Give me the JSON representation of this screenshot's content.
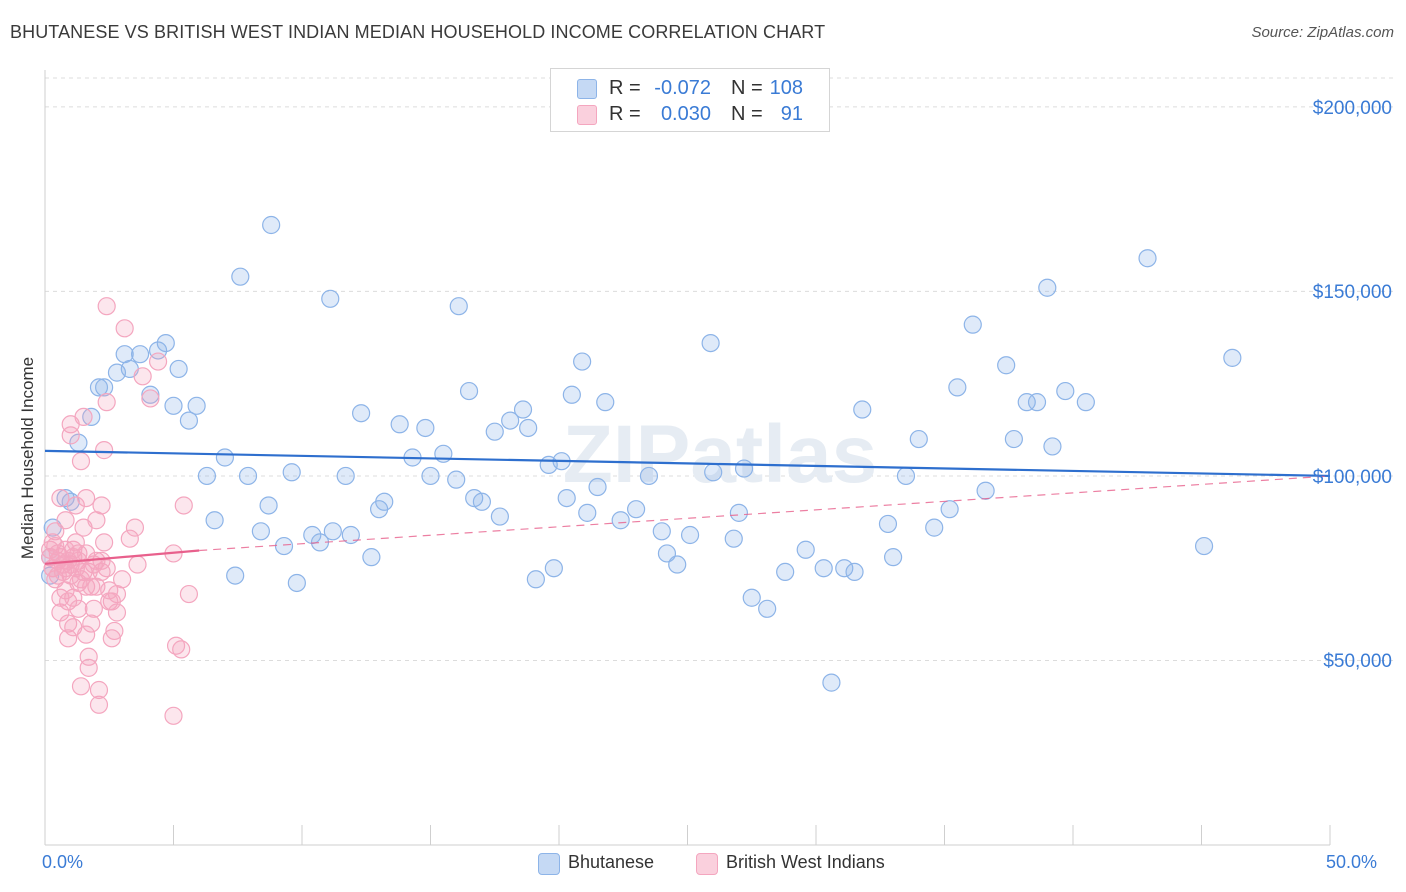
{
  "header": {
    "title": "BHUTANESE VS BRITISH WEST INDIAN MEDIAN HOUSEHOLD INCOME CORRELATION CHART",
    "source": "Source: ZipAtlas.com"
  },
  "legend_top": {
    "rows": [
      {
        "r_label": "R =",
        "r_value": "-0.072",
        "n_label": "N =",
        "n_value": "108",
        "color": "#8db4e8"
      },
      {
        "r_label": "R =",
        "r_value": "0.030",
        "n_label": "N =",
        "n_value": "91",
        "color": "#f4a6bf"
      }
    ]
  },
  "legend_bottom": {
    "items": [
      {
        "label": "Bhutanese",
        "color": "#8db4e8"
      },
      {
        "label": "British West Indians",
        "color": "#f4a6bf"
      }
    ]
  },
  "chart_data": {
    "type": "scatter",
    "title": "BHUTANESE VS BRITISH WEST INDIAN MEDIAN HOUSEHOLD INCOME CORRELATION CHART",
    "ylabel": "Median Household Income",
    "xlabel": "",
    "xlim": [
      0,
      50
    ],
    "ylim": [
      0,
      210000
    ],
    "x_tick_labels": [
      {
        "value": 0,
        "label": "0.0%"
      },
      {
        "value": 50,
        "label": "50.0%"
      }
    ],
    "y_tick_labels": [
      {
        "value": 50000,
        "label": "$50,000"
      },
      {
        "value": 100000,
        "label": "$100,000"
      },
      {
        "value": 150000,
        "label": "$150,000"
      },
      {
        "value": 200000,
        "label": "$200,000"
      }
    ],
    "grid": true,
    "legend": "bottom",
    "watermark": "ZIPatlas",
    "series": [
      {
        "name": "Bhutanese",
        "color": "#8db4e8",
        "trend": {
          "x": [
            0,
            50
          ],
          "y": [
            106800,
            100000
          ],
          "color": "#2e6fce",
          "style": "solid"
        },
        "points": [
          [
            0.2,
            78000
          ],
          [
            0.2,
            73000
          ],
          [
            0.3,
            86000
          ],
          [
            0.8,
            94000
          ],
          [
            1.0,
            93000
          ],
          [
            1.3,
            109000
          ],
          [
            1.8,
            116000
          ],
          [
            2.1,
            124000
          ],
          [
            2.3,
            124000
          ],
          [
            2.8,
            128000
          ],
          [
            3.1,
            133000
          ],
          [
            3.3,
            129000
          ],
          [
            3.7,
            133000
          ],
          [
            4.1,
            122000
          ],
          [
            4.4,
            134000
          ],
          [
            4.7,
            136000
          ],
          [
            5.0,
            119000
          ],
          [
            5.2,
            129000
          ],
          [
            5.6,
            115000
          ],
          [
            5.9,
            119000
          ],
          [
            6.3,
            100000
          ],
          [
            6.6,
            88000
          ],
          [
            7.0,
            105000
          ],
          [
            7.4,
            73000
          ],
          [
            7.6,
            154000
          ],
          [
            7.9,
            100000
          ],
          [
            8.4,
            85000
          ],
          [
            8.7,
            92000
          ],
          [
            8.8,
            168000
          ],
          [
            9.3,
            81000
          ],
          [
            9.6,
            101000
          ],
          [
            9.8,
            71000
          ],
          [
            10.4,
            84000
          ],
          [
            10.7,
            82000
          ],
          [
            11.1,
            148000
          ],
          [
            11.2,
            85000
          ],
          [
            11.7,
            100000
          ],
          [
            11.9,
            84000
          ],
          [
            12.3,
            117000
          ],
          [
            12.7,
            78000
          ],
          [
            13.0,
            91000
          ],
          [
            13.2,
            93000
          ],
          [
            13.8,
            114000
          ],
          [
            14.3,
            105000
          ],
          [
            14.8,
            113000
          ],
          [
            15.0,
            100000
          ],
          [
            15.5,
            106000
          ],
          [
            16.0,
            99000
          ],
          [
            16.1,
            146000
          ],
          [
            16.5,
            123000
          ],
          [
            16.7,
            94000
          ],
          [
            17.0,
            93000
          ],
          [
            17.5,
            112000
          ],
          [
            17.7,
            89000
          ],
          [
            18.1,
            115000
          ],
          [
            18.6,
            118000
          ],
          [
            18.8,
            113000
          ],
          [
            19.1,
            72000
          ],
          [
            19.6,
            103000
          ],
          [
            19.8,
            75000
          ],
          [
            20.1,
            104000
          ],
          [
            20.3,
            94000
          ],
          [
            20.5,
            122000
          ],
          [
            20.9,
            131000
          ],
          [
            21.1,
            90000
          ],
          [
            21.5,
            97000
          ],
          [
            21.8,
            120000
          ],
          [
            22.4,
            88000
          ],
          [
            23.0,
            91000
          ],
          [
            23.5,
            100000
          ],
          [
            24.0,
            85000
          ],
          [
            24.2,
            79000
          ],
          [
            24.6,
            76000
          ],
          [
            25.1,
            84000
          ],
          [
            25.9,
            136000
          ],
          [
            26.0,
            101000
          ],
          [
            26.8,
            83000
          ],
          [
            27.0,
            90000
          ],
          [
            27.2,
            102000
          ],
          [
            27.5,
            67000
          ],
          [
            28.1,
            64000
          ],
          [
            28.8,
            74000
          ],
          [
            29.6,
            80000
          ],
          [
            30.3,
            75000
          ],
          [
            30.6,
            44000
          ],
          [
            31.1,
            75000
          ],
          [
            31.5,
            74000
          ],
          [
            31.8,
            118000
          ],
          [
            32.8,
            87000
          ],
          [
            33.0,
            78000
          ],
          [
            33.5,
            100000
          ],
          [
            34.0,
            110000
          ],
          [
            34.6,
            86000
          ],
          [
            35.2,
            91000
          ],
          [
            35.5,
            124000
          ],
          [
            36.1,
            141000
          ],
          [
            36.6,
            96000
          ],
          [
            37.4,
            130000
          ],
          [
            37.7,
            110000
          ],
          [
            38.2,
            120000
          ],
          [
            38.6,
            120000
          ],
          [
            39.0,
            151000
          ],
          [
            39.2,
            108000
          ],
          [
            39.7,
            123000
          ],
          [
            40.5,
            120000
          ],
          [
            42.9,
            159000
          ],
          [
            45.1,
            81000
          ],
          [
            46.2,
            132000
          ]
        ]
      },
      {
        "name": "British West Indians",
        "color": "#f4a6bf",
        "trend_solid": {
          "x": [
            0,
            6.0
          ],
          "y": [
            76200,
            79800
          ],
          "color": "#e8608c",
          "style": "solid"
        },
        "trend_dashed": {
          "x": [
            6.0,
            50
          ],
          "y": [
            79800,
            100000
          ],
          "color": "#e8608c",
          "style": "dashed"
        },
        "points": [
          [
            0.2,
            80000
          ],
          [
            0.2,
            78000
          ],
          [
            0.3,
            82000
          ],
          [
            0.3,
            75000
          ],
          [
            0.4,
            72000
          ],
          [
            0.4,
            85000
          ],
          [
            0.5,
            79000
          ],
          [
            0.5,
            77000
          ],
          [
            0.6,
            94000
          ],
          [
            0.6,
            67000
          ],
          [
            0.6,
            63000
          ],
          [
            0.7,
            76000
          ],
          [
            0.8,
            88000
          ],
          [
            0.8,
            75000
          ],
          [
            0.8,
            69000
          ],
          [
            0.9,
            66000
          ],
          [
            0.9,
            60000
          ],
          [
            0.9,
            56000
          ],
          [
            1.0,
            114000
          ],
          [
            1.0,
            111000
          ],
          [
            1.0,
            73000
          ],
          [
            1.1,
            80000
          ],
          [
            1.1,
            67000
          ],
          [
            1.1,
            59000
          ],
          [
            1.2,
            92000
          ],
          [
            1.2,
            82000
          ],
          [
            1.3,
            79000
          ],
          [
            1.3,
            71000
          ],
          [
            1.3,
            64000
          ],
          [
            1.4,
            104000
          ],
          [
            1.4,
            43000
          ],
          [
            1.5,
            116000
          ],
          [
            1.5,
            86000
          ],
          [
            1.5,
            74000
          ],
          [
            1.6,
            94000
          ],
          [
            1.6,
            70000
          ],
          [
            1.6,
            57000
          ],
          [
            1.7,
            51000
          ],
          [
            1.7,
            48000
          ],
          [
            1.8,
            70000
          ],
          [
            1.8,
            60000
          ],
          [
            1.9,
            64000
          ],
          [
            1.9,
            76000
          ],
          [
            2.0,
            88000
          ],
          [
            2.0,
            70000
          ],
          [
            2.1,
            42000
          ],
          [
            2.1,
            38000
          ],
          [
            2.2,
            77000
          ],
          [
            2.2,
            92000
          ],
          [
            2.3,
            82000
          ],
          [
            2.3,
            107000
          ],
          [
            2.4,
            120000
          ],
          [
            2.4,
            75000
          ],
          [
            2.5,
            69000
          ],
          [
            2.6,
            56000
          ],
          [
            2.6,
            66000
          ],
          [
            2.7,
            58000
          ],
          [
            2.8,
            63000
          ],
          [
            2.8,
            68000
          ],
          [
            3.0,
            72000
          ],
          [
            3.1,
            140000
          ],
          [
            3.3,
            83000
          ],
          [
            3.5,
            86000
          ],
          [
            3.6,
            76000
          ],
          [
            3.8,
            127000
          ],
          [
            4.1,
            121000
          ],
          [
            4.4,
            131000
          ],
          [
            5.0,
            79000
          ],
          [
            5.1,
            54000
          ],
          [
            5.3,
            53000
          ],
          [
            5.4,
            92000
          ],
          [
            5.6,
            68000
          ],
          [
            5.0,
            35000
          ],
          [
            0.3,
            75000
          ],
          [
            0.4,
            81000
          ],
          [
            0.5,
            73000
          ],
          [
            0.6,
            78000
          ],
          [
            0.7,
            74000
          ],
          [
            0.8,
            80000
          ],
          [
            0.9,
            77000
          ],
          [
            1.0,
            76000
          ],
          [
            1.1,
            78000
          ],
          [
            1.2,
            75000
          ],
          [
            1.3,
            77000
          ],
          [
            1.4,
            72000
          ],
          [
            1.6,
            79000
          ],
          [
            1.7,
            74000
          ],
          [
            2.0,
            77000
          ],
          [
            2.2,
            74000
          ],
          [
            2.4,
            146000
          ],
          [
            2.5,
            66000
          ]
        ]
      }
    ]
  }
}
